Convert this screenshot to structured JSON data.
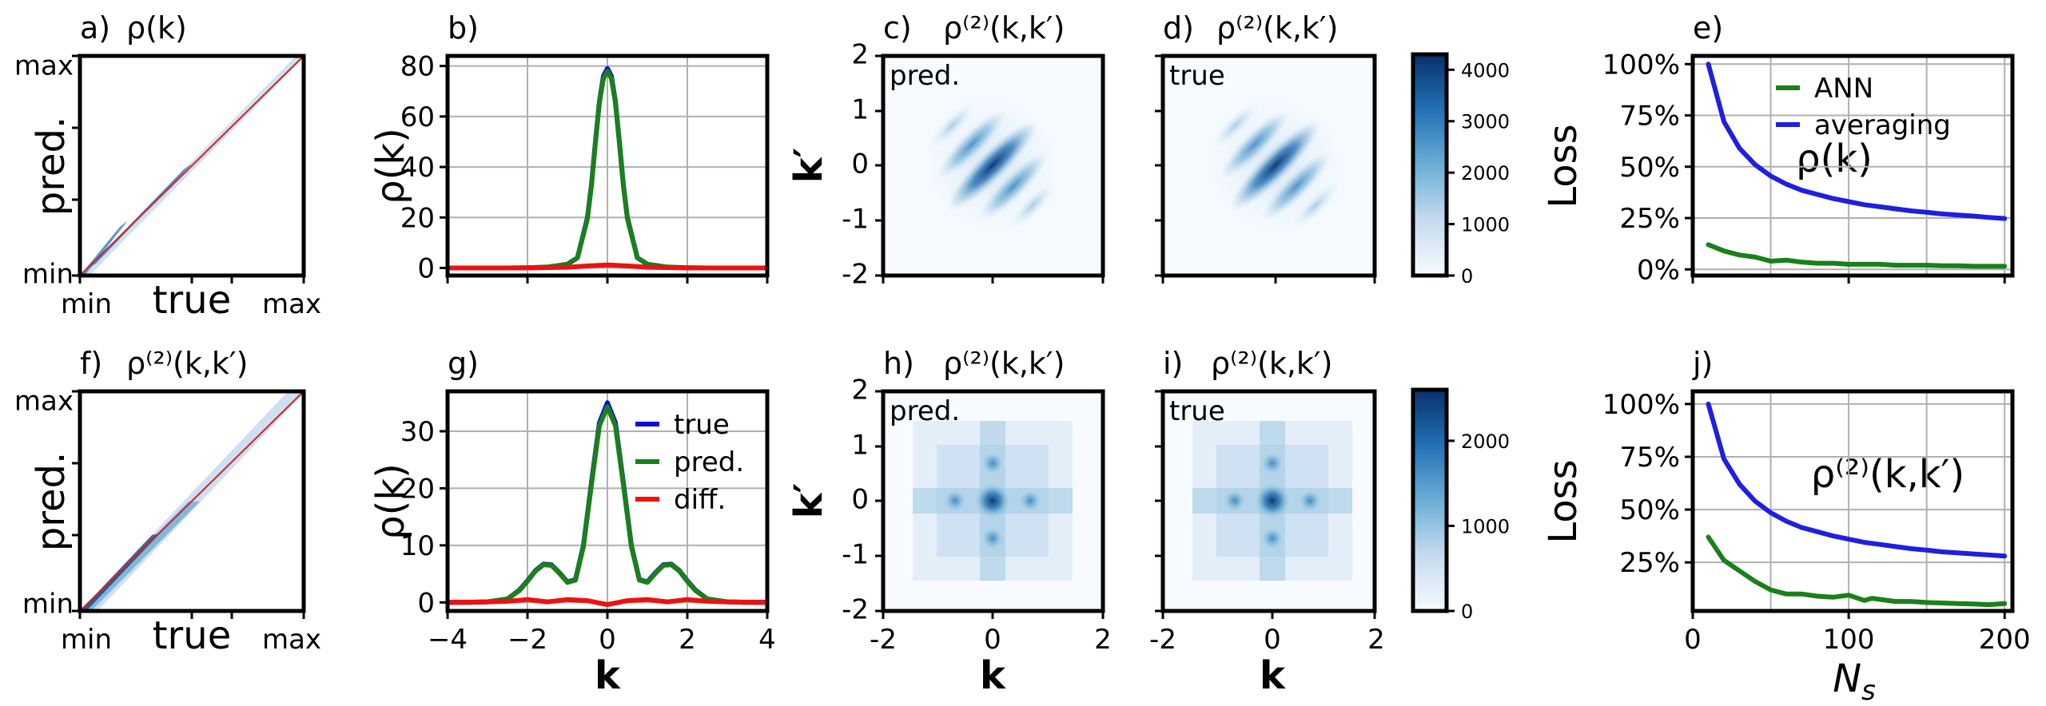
{
  "colors": {
    "true_line": "#0b0bdd",
    "pred_line": "#1a801a",
    "diff_line": "#ee1111",
    "ann_line": "#1a801a",
    "avg_line": "#1f1fe0",
    "diag": "#d62020",
    "cmap_dark": "#08306b",
    "cmap_light": "#f7fbff"
  },
  "chart_data": [
    {
      "id": "a",
      "type": "scatter",
      "panel_label": "a)",
      "title_tex": "ρ(k)",
      "xlabel": "true",
      "ylabel": "pred.",
      "x_ticks": [
        "min",
        "max"
      ],
      "y_ticks": [
        "min",
        "max"
      ],
      "note": "pred. vs true histogram concentrated along the diagonal"
    },
    {
      "id": "b",
      "type": "line",
      "panel_label": "b)",
      "ylabel": "ρ(k)",
      "xlim": [
        -4,
        4
      ],
      "ylim": [
        -3,
        84
      ],
      "x_ticks": [
        -4,
        -2,
        0,
        2,
        4
      ],
      "y_ticks": [
        0,
        20,
        40,
        60,
        80
      ],
      "grid": true,
      "series": [
        {
          "key": "true",
          "x": [
            -4,
            -3.5,
            -3,
            -2.5,
            -2,
            -1.5,
            -1,
            -0.75,
            -0.5,
            -0.4,
            -0.3,
            -0.2,
            -0.1,
            0,
            0.1,
            0.2,
            0.3,
            0.4,
            0.5,
            0.75,
            1,
            1.5,
            2,
            2.5,
            3,
            3.5,
            4
          ],
          "y": [
            0,
            0,
            0,
            0,
            0.1,
            0.3,
            1.5,
            4,
            20,
            33,
            50,
            66,
            76,
            79,
            76,
            66,
            50,
            33,
            20,
            4,
            1.5,
            0.3,
            0.1,
            0,
            0,
            0,
            0
          ]
        },
        {
          "key": "pred",
          "x": [
            -4,
            -3.5,
            -3,
            -2.5,
            -2,
            -1.5,
            -1,
            -0.75,
            -0.5,
            -0.4,
            -0.3,
            -0.2,
            -0.1,
            0,
            0.1,
            0.2,
            0.3,
            0.4,
            0.5,
            0.75,
            1,
            1.5,
            2,
            2.5,
            3,
            3.5,
            4
          ],
          "y": [
            0,
            0,
            0,
            0,
            0.1,
            0.4,
            1.5,
            4,
            19.5,
            32.5,
            49.5,
            65.5,
            75,
            78,
            75,
            65.5,
            49.5,
            32.5,
            19.5,
            4,
            1.5,
            0.4,
            0.1,
            0,
            0,
            0,
            0
          ]
        },
        {
          "key": "diff",
          "x": [
            -4,
            -2,
            -1,
            -0.5,
            0,
            0.5,
            1,
            2,
            4
          ],
          "y": [
            0,
            0,
            0.3,
            0.8,
            1.2,
            0.8,
            0.3,
            0,
            0
          ]
        }
      ]
    },
    {
      "id": "c",
      "type": "heatmap",
      "panel_label": "c)",
      "title_tex": "ρ⁽²⁾(k,k′)",
      "inset": "pred.",
      "pattern": "diagonal",
      "ylabel": "k′",
      "xlim": [
        -2,
        2
      ],
      "ylim": [
        -2,
        2
      ],
      "y_ticks": [
        -2,
        -1,
        0,
        1,
        2
      ]
    },
    {
      "id": "d",
      "type": "heatmap",
      "panel_label": "d)",
      "title_tex": "ρ⁽²⁾(k,k′)",
      "inset": "true",
      "pattern": "diagonal",
      "xlim": [
        -2,
        2
      ],
      "ylim": [
        -2,
        2
      ],
      "colorbar": {
        "ticks": [
          0,
          1000,
          2000,
          3000,
          4000
        ],
        "max": 4300
      }
    },
    {
      "id": "e",
      "type": "line",
      "panel_label": "e)",
      "ylabel": "Loss",
      "annotation": "ρ(k)",
      "xlim": [
        0,
        205
      ],
      "ylim": [
        -3,
        104
      ],
      "x_ticks": [
        0,
        100,
        200
      ],
      "y_ticks": [
        "0%",
        "25%",
        "50%",
        "75%",
        "100%"
      ],
      "y_tick_values": [
        0,
        25,
        50,
        75,
        100
      ],
      "grid": true,
      "legend": {
        "position": "upper-right"
      },
      "series": [
        {
          "key": "ann",
          "x": [
            10,
            20,
            30,
            40,
            50,
            60,
            70,
            80,
            90,
            100,
            110,
            120,
            130,
            140,
            150,
            160,
            170,
            180,
            190,
            200
          ],
          "y": [
            12,
            9,
            7,
            6,
            4,
            4.5,
            3.5,
            3,
            3,
            2.5,
            2.5,
            2.5,
            2,
            2,
            2,
            1.8,
            1.8,
            1.5,
            1.5,
            1.5
          ]
        },
        {
          "key": "avg",
          "x": [
            10,
            20,
            30,
            40,
            50,
            60,
            70,
            80,
            90,
            100,
            110,
            120,
            130,
            140,
            150,
            160,
            170,
            180,
            190,
            200
          ],
          "y": [
            100,
            72,
            59,
            51,
            45.5,
            41.5,
            38.5,
            36.5,
            34.5,
            33,
            31.5,
            30.5,
            29.5,
            28.5,
            27.8,
            27,
            26.5,
            26,
            25.3,
            24.8
          ]
        }
      ]
    },
    {
      "id": "f",
      "type": "scatter",
      "panel_label": "f)",
      "title_tex": "ρ⁽²⁾(k,k′)",
      "xlabel": "true",
      "ylabel": "pred.",
      "x_ticks": [
        "min",
        "max"
      ],
      "y_ticks": [
        "min",
        "max"
      ]
    },
    {
      "id": "g",
      "type": "line",
      "panel_label": "g)",
      "ylabel": "ρ(k)",
      "xlabel": "k",
      "xlim": [
        -4,
        4
      ],
      "ylim": [
        -1.5,
        37
      ],
      "x_ticks": [
        -4,
        -2,
        0,
        2,
        4
      ],
      "y_ticks": [
        0,
        10,
        20,
        30
      ],
      "grid": true,
      "legend": {
        "position": "upper-right"
      },
      "series": [
        {
          "key": "true",
          "x": [
            -4,
            -3.5,
            -3,
            -2.5,
            -2.2,
            -2,
            -1.8,
            -1.6,
            -1.4,
            -1.2,
            -1,
            -0.8,
            -0.6,
            -0.4,
            -0.2,
            0,
            0.2,
            0.4,
            0.6,
            0.8,
            1,
            1.2,
            1.4,
            1.6,
            1.8,
            2,
            2.2,
            2.5,
            3,
            3.5,
            4
          ],
          "y": [
            0,
            0,
            0.1,
            0.6,
            2.2,
            3.8,
            5.6,
            6.7,
            6.6,
            5.2,
            3.6,
            4,
            10,
            21,
            31.5,
            35,
            31.5,
            21,
            10,
            4,
            3.6,
            5.2,
            6.6,
            6.7,
            5.6,
            3.8,
            2.2,
            0.6,
            0.1,
            0,
            0
          ]
        },
        {
          "key": "pred",
          "x": [
            -4,
            -3.5,
            -3,
            -2.5,
            -2.2,
            -2,
            -1.8,
            -1.6,
            -1.4,
            -1.2,
            -1,
            -0.8,
            -0.6,
            -0.4,
            -0.2,
            0,
            0.2,
            0.4,
            0.6,
            0.8,
            1,
            1.2,
            1.4,
            1.6,
            1.8,
            2,
            2.2,
            2.5,
            3,
            3.5,
            4
          ],
          "y": [
            0,
            0,
            0.1,
            0.6,
            2.1,
            3.7,
            5.5,
            6.6,
            6.5,
            5.1,
            3.5,
            3.9,
            9.8,
            20.6,
            31,
            34.3,
            31,
            20.6,
            9.8,
            3.9,
            3.5,
            5.1,
            6.5,
            6.6,
            5.5,
            3.7,
            2.1,
            0.6,
            0.1,
            0,
            0
          ]
        },
        {
          "key": "diff",
          "x": [
            -4,
            -3,
            -2.5,
            -2,
            -1.5,
            -1,
            -0.5,
            0,
            0.5,
            1,
            1.5,
            2,
            2.5,
            3,
            4
          ],
          "y": [
            0,
            0.1,
            0.2,
            0.5,
            0.1,
            0.5,
            0.3,
            -0.4,
            0.3,
            0.5,
            0.1,
            0.5,
            0.2,
            0.1,
            0
          ]
        }
      ]
    },
    {
      "id": "h",
      "type": "heatmap",
      "panel_label": "h)",
      "title_tex": "ρ⁽²⁾(k,k′)",
      "inset": "pred.",
      "pattern": "cross",
      "xlabel": "k",
      "ylabel": "k′",
      "xlim": [
        -2,
        2
      ],
      "ylim": [
        -2,
        2
      ],
      "x_ticks": [
        -2,
        0,
        2
      ],
      "y_ticks": [
        -2,
        -1,
        0,
        1,
        2
      ]
    },
    {
      "id": "i",
      "type": "heatmap",
      "panel_label": "i)",
      "title_tex": "ρ⁽²⁾(k,k′)",
      "inset": "true",
      "pattern": "cross",
      "xlabel": "k",
      "xlim": [
        -2,
        2
      ],
      "ylim": [
        -2,
        2
      ],
      "x_ticks": [
        -2,
        0,
        2
      ],
      "colorbar": {
        "ticks": [
          0,
          1000,
          2000
        ],
        "max": 2600
      }
    },
    {
      "id": "j",
      "type": "line",
      "panel_label": "j)",
      "ylabel": "Loss",
      "xlabel": "N_s",
      "annotation": "ρ⁽²⁾(k,k′)",
      "xlim": [
        0,
        205
      ],
      "ylim": [
        2,
        106
      ],
      "x_ticks": [
        0,
        100,
        200
      ],
      "y_ticks": [
        "25%",
        "50%",
        "75%",
        "100%"
      ],
      "y_tick_values": [
        25,
        50,
        75,
        100
      ],
      "grid": true,
      "series": [
        {
          "key": "ann",
          "x": [
            10,
            20,
            30,
            40,
            50,
            60,
            70,
            80,
            90,
            100,
            110,
            115,
            120,
            130,
            140,
            150,
            160,
            170,
            180,
            190,
            200
          ],
          "y": [
            37,
            26,
            21,
            16,
            12,
            10,
            10,
            9,
            8.5,
            9.5,
            7,
            8,
            7.5,
            6.5,
            6.5,
            6,
            5.8,
            5.5,
            5.3,
            5,
            5.5
          ]
        },
        {
          "key": "avg",
          "x": [
            10,
            20,
            30,
            40,
            50,
            60,
            70,
            80,
            90,
            100,
            110,
            120,
            130,
            140,
            150,
            160,
            170,
            180,
            190,
            200
          ],
          "y": [
            100,
            74,
            62,
            54,
            48.5,
            44.5,
            41.5,
            39.5,
            37.5,
            36,
            34.5,
            33.5,
            32.5,
            31.5,
            30.8,
            30,
            29.5,
            29,
            28.5,
            28
          ]
        }
      ]
    }
  ],
  "legends": {
    "g": {
      "true": "true",
      "pred": "pred.",
      "diff": "diff."
    },
    "e": {
      "ann": "ANN",
      "avg": "averaging"
    }
  }
}
